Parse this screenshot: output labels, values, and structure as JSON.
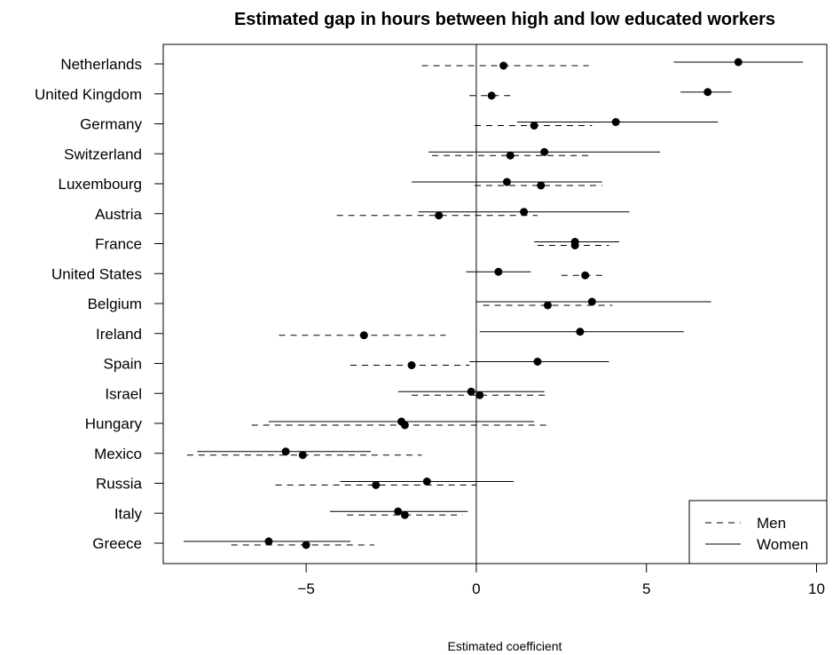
{
  "chart_data": {
    "type": "scatter",
    "title": "Estimated gap in hours between high and low educated workers",
    "xlabel": "Estimated coefficient",
    "ylabel": "",
    "xlim": [
      -9.2,
      10.3
    ],
    "xticks": [
      -5,
      0,
      5,
      10
    ],
    "xtick_labels": [
      "−5",
      "0",
      "5",
      "10"
    ],
    "reference_line_x": 0,
    "legend_position": "bottom-right",
    "categories": [
      "Netherlands",
      "United Kingdom",
      "Germany",
      "Switzerland",
      "Luxembourg",
      "Austria",
      "France",
      "United States",
      "Belgium",
      "Ireland",
      "Spain",
      "Israel",
      "Hungary",
      "Mexico",
      "Russia",
      "Italy",
      "Greece"
    ],
    "series": [
      {
        "name": "Women",
        "line_style": "solid",
        "points": [
          {
            "est": 7.7,
            "lo": 5.8,
            "hi": 9.6
          },
          {
            "est": 6.8,
            "lo": 6.0,
            "hi": 7.5
          },
          {
            "est": 4.1,
            "lo": 1.2,
            "hi": 7.1
          },
          {
            "est": 2.0,
            "lo": -1.4,
            "hi": 5.4
          },
          {
            "est": 0.9,
            "lo": -1.9,
            "hi": 3.7
          },
          {
            "est": 1.4,
            "lo": -1.7,
            "hi": 4.5
          },
          {
            "est": 2.9,
            "lo": 1.7,
            "hi": 4.2
          },
          {
            "est": 0.65,
            "lo": -0.3,
            "hi": 1.6
          },
          {
            "est": 3.4,
            "lo": 0.0,
            "hi": 6.9
          },
          {
            "est": 3.05,
            "lo": 0.1,
            "hi": 6.1
          },
          {
            "est": 1.8,
            "lo": -0.2,
            "hi": 3.9
          },
          {
            "est": -0.15,
            "lo": -2.3,
            "hi": 2.0
          },
          {
            "est": -2.2,
            "lo": -6.1,
            "hi": 1.7
          },
          {
            "est": -5.6,
            "lo": -8.2,
            "hi": -3.1
          },
          {
            "est": -1.45,
            "lo": -4.0,
            "hi": 1.1
          },
          {
            "est": -2.3,
            "lo": -4.3,
            "hi": -0.25
          },
          {
            "est": -6.1,
            "lo": -8.6,
            "hi": -3.7
          }
        ]
      },
      {
        "name": "Men",
        "line_style": "dashed",
        "points": [
          {
            "est": 0.8,
            "lo": -1.6,
            "hi": 3.3
          },
          {
            "est": 0.45,
            "lo": -0.2,
            "hi": 1.1
          },
          {
            "est": 1.7,
            "lo": -0.05,
            "hi": 3.4
          },
          {
            "est": 1.0,
            "lo": -1.3,
            "hi": 3.4
          },
          {
            "est": 1.9,
            "lo": -0.05,
            "hi": 3.7
          },
          {
            "est": -1.1,
            "lo": -4.1,
            "hi": 1.8
          },
          {
            "est": 2.9,
            "lo": 1.8,
            "hi": 3.9
          },
          {
            "est": 3.2,
            "lo": 2.5,
            "hi": 3.8
          },
          {
            "est": 2.1,
            "lo": 0.2,
            "hi": 4.0
          },
          {
            "est": -3.3,
            "lo": -5.8,
            "hi": -0.9
          },
          {
            "est": -1.9,
            "lo": -3.7,
            "hi": -0.2
          },
          {
            "est": 0.1,
            "lo": -1.9,
            "hi": 2.1
          },
          {
            "est": -2.1,
            "lo": -6.6,
            "hi": 2.2
          },
          {
            "est": -5.1,
            "lo": -8.5,
            "hi": -1.6
          },
          {
            "est": -2.95,
            "lo": -5.9,
            "hi": 0.0
          },
          {
            "est": -2.1,
            "lo": -3.8,
            "hi": -0.4
          },
          {
            "est": -5.0,
            "lo": -7.2,
            "hi": -3.0
          }
        ]
      }
    ],
    "legend": [
      {
        "label": "Men",
        "line_style": "dashed"
      },
      {
        "label": "Women",
        "line_style": "solid"
      }
    ]
  }
}
